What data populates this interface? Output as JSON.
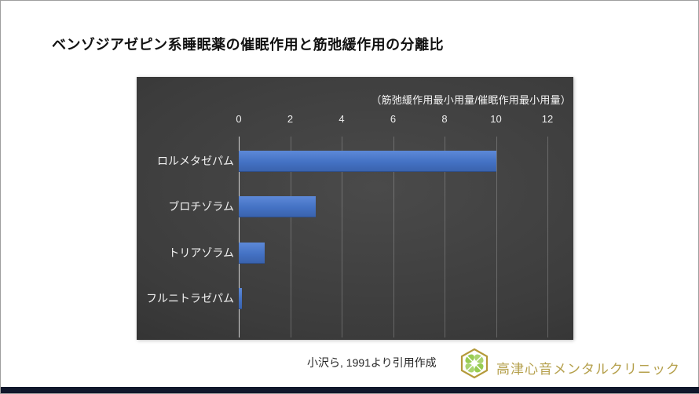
{
  "page": {
    "title": "ベンゾジアゼピン系睡眠薬の催眠作用と筋弛緩作用の分離比",
    "source_caption": "小沢ら, 1991より引用作成",
    "clinic_name": "高津心音メンタルクリニック",
    "clinic_name_color": "#b5a04c",
    "bottom_strip_color": "#10172b",
    "logo_icon": "hexagon-clover-logo",
    "logo_colors": {
      "hexagon": "#b49a3a",
      "clover": "#8dc63f"
    }
  },
  "chart_data": {
    "type": "bar",
    "orientation": "horizontal",
    "title": "",
    "annotation": "（筋弛緩作用最小用量/催眠作用最小用量）",
    "categories": [
      "ロルメタゼパム",
      "ブロチゾラム",
      "トリアゾラム",
      "フルニトラゼパム"
    ],
    "values": [
      10,
      3,
      1,
      0.12
    ],
    "x_ticks": [
      0,
      2,
      4,
      6,
      8,
      10,
      12
    ],
    "xlim": [
      0,
      12
    ],
    "grid": true,
    "legend": false,
    "bar_color": "#4472c4",
    "plot_background": "#3c3c3c",
    "gridline_color": "rgba(255,255,255,0.22)",
    "tick_label_color": "#ededed"
  }
}
